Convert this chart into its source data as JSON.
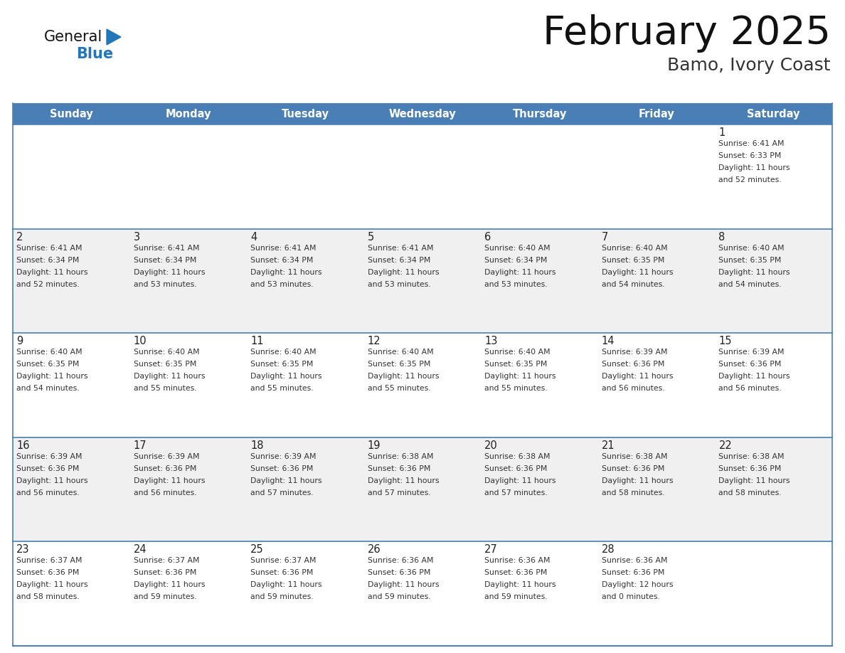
{
  "title": "February 2025",
  "subtitle": "Bamo, Ivory Coast",
  "days_of_week": [
    "Sunday",
    "Monday",
    "Tuesday",
    "Wednesday",
    "Thursday",
    "Friday",
    "Saturday"
  ],
  "header_bg": "#4a7fb5",
  "header_text": "#FFFFFF",
  "cell_bg_white": "#FFFFFF",
  "cell_bg_gray": "#F0F0F0",
  "cell_border_color": "#4a7fb5",
  "day_number_color": "#222222",
  "text_color": "#333333",
  "title_color": "#111111",
  "subtitle_color": "#333333",
  "logo_black": "#111111",
  "logo_blue": "#2277bb",
  "triangle_color": "#2277bb",
  "calendar": [
    [
      {
        "day": "",
        "lines": []
      },
      {
        "day": "",
        "lines": []
      },
      {
        "day": "",
        "lines": []
      },
      {
        "day": "",
        "lines": []
      },
      {
        "day": "",
        "lines": []
      },
      {
        "day": "",
        "lines": []
      },
      {
        "day": "1",
        "lines": [
          "Sunrise: 6:41 AM",
          "Sunset: 6:33 PM",
          "Daylight: 11 hours",
          "and 52 minutes."
        ]
      }
    ],
    [
      {
        "day": "2",
        "lines": [
          "Sunrise: 6:41 AM",
          "Sunset: 6:34 PM",
          "Daylight: 11 hours",
          "and 52 minutes."
        ]
      },
      {
        "day": "3",
        "lines": [
          "Sunrise: 6:41 AM",
          "Sunset: 6:34 PM",
          "Daylight: 11 hours",
          "and 53 minutes."
        ]
      },
      {
        "day": "4",
        "lines": [
          "Sunrise: 6:41 AM",
          "Sunset: 6:34 PM",
          "Daylight: 11 hours",
          "and 53 minutes."
        ]
      },
      {
        "day": "5",
        "lines": [
          "Sunrise: 6:41 AM",
          "Sunset: 6:34 PM",
          "Daylight: 11 hours",
          "and 53 minutes."
        ]
      },
      {
        "day": "6",
        "lines": [
          "Sunrise: 6:40 AM",
          "Sunset: 6:34 PM",
          "Daylight: 11 hours",
          "and 53 minutes."
        ]
      },
      {
        "day": "7",
        "lines": [
          "Sunrise: 6:40 AM",
          "Sunset: 6:35 PM",
          "Daylight: 11 hours",
          "and 54 minutes."
        ]
      },
      {
        "day": "8",
        "lines": [
          "Sunrise: 6:40 AM",
          "Sunset: 6:35 PM",
          "Daylight: 11 hours",
          "and 54 minutes."
        ]
      }
    ],
    [
      {
        "day": "9",
        "lines": [
          "Sunrise: 6:40 AM",
          "Sunset: 6:35 PM",
          "Daylight: 11 hours",
          "and 54 minutes."
        ]
      },
      {
        "day": "10",
        "lines": [
          "Sunrise: 6:40 AM",
          "Sunset: 6:35 PM",
          "Daylight: 11 hours",
          "and 55 minutes."
        ]
      },
      {
        "day": "11",
        "lines": [
          "Sunrise: 6:40 AM",
          "Sunset: 6:35 PM",
          "Daylight: 11 hours",
          "and 55 minutes."
        ]
      },
      {
        "day": "12",
        "lines": [
          "Sunrise: 6:40 AM",
          "Sunset: 6:35 PM",
          "Daylight: 11 hours",
          "and 55 minutes."
        ]
      },
      {
        "day": "13",
        "lines": [
          "Sunrise: 6:40 AM",
          "Sunset: 6:35 PM",
          "Daylight: 11 hours",
          "and 55 minutes."
        ]
      },
      {
        "day": "14",
        "lines": [
          "Sunrise: 6:39 AM",
          "Sunset: 6:36 PM",
          "Daylight: 11 hours",
          "and 56 minutes."
        ]
      },
      {
        "day": "15",
        "lines": [
          "Sunrise: 6:39 AM",
          "Sunset: 6:36 PM",
          "Daylight: 11 hours",
          "and 56 minutes."
        ]
      }
    ],
    [
      {
        "day": "16",
        "lines": [
          "Sunrise: 6:39 AM",
          "Sunset: 6:36 PM",
          "Daylight: 11 hours",
          "and 56 minutes."
        ]
      },
      {
        "day": "17",
        "lines": [
          "Sunrise: 6:39 AM",
          "Sunset: 6:36 PM",
          "Daylight: 11 hours",
          "and 56 minutes."
        ]
      },
      {
        "day": "18",
        "lines": [
          "Sunrise: 6:39 AM",
          "Sunset: 6:36 PM",
          "Daylight: 11 hours",
          "and 57 minutes."
        ]
      },
      {
        "day": "19",
        "lines": [
          "Sunrise: 6:38 AM",
          "Sunset: 6:36 PM",
          "Daylight: 11 hours",
          "and 57 minutes."
        ]
      },
      {
        "day": "20",
        "lines": [
          "Sunrise: 6:38 AM",
          "Sunset: 6:36 PM",
          "Daylight: 11 hours",
          "and 57 minutes."
        ]
      },
      {
        "day": "21",
        "lines": [
          "Sunrise: 6:38 AM",
          "Sunset: 6:36 PM",
          "Daylight: 11 hours",
          "and 58 minutes."
        ]
      },
      {
        "day": "22",
        "lines": [
          "Sunrise: 6:38 AM",
          "Sunset: 6:36 PM",
          "Daylight: 11 hours",
          "and 58 minutes."
        ]
      }
    ],
    [
      {
        "day": "23",
        "lines": [
          "Sunrise: 6:37 AM",
          "Sunset: 6:36 PM",
          "Daylight: 11 hours",
          "and 58 minutes."
        ]
      },
      {
        "day": "24",
        "lines": [
          "Sunrise: 6:37 AM",
          "Sunset: 6:36 PM",
          "Daylight: 11 hours",
          "and 59 minutes."
        ]
      },
      {
        "day": "25",
        "lines": [
          "Sunrise: 6:37 AM",
          "Sunset: 6:36 PM",
          "Daylight: 11 hours",
          "and 59 minutes."
        ]
      },
      {
        "day": "26",
        "lines": [
          "Sunrise: 6:36 AM",
          "Sunset: 6:36 PM",
          "Daylight: 11 hours",
          "and 59 minutes."
        ]
      },
      {
        "day": "27",
        "lines": [
          "Sunrise: 6:36 AM",
          "Sunset: 6:36 PM",
          "Daylight: 11 hours",
          "and 59 minutes."
        ]
      },
      {
        "day": "28",
        "lines": [
          "Sunrise: 6:36 AM",
          "Sunset: 6:36 PM",
          "Daylight: 12 hours",
          "and 0 minutes."
        ]
      },
      {
        "day": "",
        "lines": []
      }
    ]
  ]
}
